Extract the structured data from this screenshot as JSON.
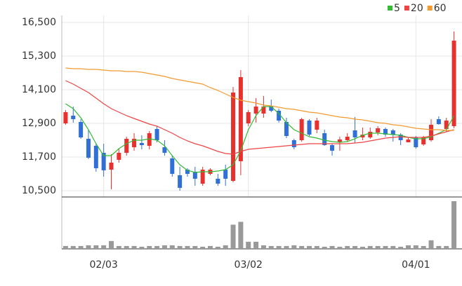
{
  "chart_data": {
    "type": "candlestick",
    "categories": [
      null,
      null,
      null,
      null,
      null,
      "02/03",
      null,
      null,
      null,
      null,
      null,
      null,
      null,
      null,
      null,
      null,
      null,
      null,
      null,
      null,
      null,
      null,
      null,
      null,
      "03/02",
      null,
      null,
      null,
      null,
      null,
      null,
      null,
      null,
      null,
      null,
      null,
      null,
      null,
      null,
      null,
      null,
      null,
      null,
      null,
      null,
      null,
      "04/01",
      null,
      null,
      null,
      null,
      null
    ],
    "open": [
      12900,
      13175,
      12950,
      12350,
      12100,
      11850,
      11250,
      11600,
      11850,
      12050,
      12200,
      12100,
      12700,
      12050,
      11650,
      11050,
      11250,
      11175,
      10750,
      11100,
      10925,
      11250,
      10850,
      11550,
      12900,
      13250,
      13250,
      13500,
      13350,
      12950,
      12300,
      12300,
      13000,
      12675,
      12550,
      12125,
      12225,
      12300,
      12650,
      12400,
      12400,
      12575,
      12700,
      12650,
      12500,
      12225,
      12400,
      12150,
      12300,
      13050,
      12700,
      12800
    ],
    "high": [
      13375,
      13500,
      13050,
      12675,
      12175,
      12175,
      11800,
      12000,
      12425,
      12550,
      12475,
      12625,
      12800,
      12300,
      11750,
      11350,
      11300,
      11350,
      11350,
      11300,
      11100,
      11425,
      14200,
      14800,
      13375,
      13800,
      13875,
      13750,
      13425,
      13100,
      12350,
      13100,
      13050,
      13100,
      12675,
      12175,
      12425,
      12550,
      13125,
      12750,
      12750,
      12800,
      12750,
      12700,
      12550,
      12400,
      12450,
      12450,
      13050,
      13150,
      13100,
      16175
    ],
    "low": [
      12850,
      12925,
      12350,
      11625,
      11175,
      11000,
      10550,
      11500,
      11750,
      11925,
      11975,
      11975,
      12225,
      11750,
      11000,
      10500,
      11000,
      10675,
      10675,
      11050,
      10675,
      10675,
      10800,
      11050,
      12800,
      12925,
      13100,
      13300,
      12925,
      12375,
      11975,
      12250,
      12450,
      12550,
      12100,
      11750,
      11925,
      12250,
      12200,
      12300,
      12350,
      12475,
      12425,
      12250,
      12125,
      12225,
      12000,
      12100,
      12250,
      12850,
      12600,
      12725
    ],
    "close": [
      13300,
      13050,
      12400,
      11675,
      11300,
      11225,
      11500,
      11850,
      12350,
      12350,
      12125,
      12550,
      12300,
      11850,
      11100,
      10600,
      11100,
      10925,
      11250,
      11250,
      10750,
      10925,
      14000,
      14550,
      13300,
      13500,
      13500,
      13350,
      13000,
      12450,
      12050,
      13050,
      12500,
      13000,
      12125,
      11925,
      12325,
      12425,
      12400,
      12500,
      12600,
      12725,
      12500,
      12500,
      12300,
      12325,
      12050,
      12400,
      12850,
      12875,
      13000,
      15850
    ],
    "up_color": "#e8302f",
    "down_color": "#2f6fd6",
    "series": [
      {
        "name": "5",
        "color": "#33bb33",
        "values": [
          13600,
          13425,
          13100,
          12675,
          12175,
          11750,
          11750,
          12000,
          12175,
          12300,
          12300,
          12350,
          12300,
          12100,
          11750,
          11425,
          11225,
          11150,
          11175,
          11175,
          11200,
          11250,
          11425,
          11925,
          12675,
          13175,
          13500,
          13500,
          13250,
          12925,
          12675,
          12550,
          12425,
          12375,
          12300,
          12250,
          12225,
          12250,
          12350,
          12475,
          12550,
          12550,
          12525,
          12500,
          12475,
          12400,
          12350,
          12350,
          12425,
          12550,
          12675,
          13175
        ]
      },
      {
        "name": "20",
        "color": "#ee4444",
        "values": [
          14425,
          14300,
          14150,
          14000,
          13800,
          13600,
          13425,
          13300,
          13175,
          13075,
          12975,
          12875,
          12800,
          12675,
          12550,
          12400,
          12275,
          12175,
          12100,
          12000,
          11900,
          11825,
          11800,
          11900,
          11975,
          12000,
          12025,
          12050,
          12075,
          12100,
          12125,
          12150,
          12175,
          12175,
          12175,
          12175,
          12175,
          12175,
          12200,
          12225,
          12275,
          12325,
          12375,
          12400,
          12425,
          12400,
          12400,
          12400,
          12450,
          12525,
          12600,
          12675
        ]
      },
      {
        "name": "60",
        "color": "#f39a30",
        "values": [
          14875,
          14850,
          14850,
          14825,
          14825,
          14800,
          14775,
          14775,
          14750,
          14750,
          14725,
          14675,
          14625,
          14575,
          14500,
          14450,
          14400,
          14350,
          14300,
          14175,
          14075,
          13950,
          13825,
          13725,
          13675,
          13625,
          13550,
          13525,
          13475,
          13425,
          13400,
          13350,
          13300,
          13275,
          13225,
          13175,
          13125,
          13100,
          13050,
          13025,
          12975,
          12925,
          12900,
          12850,
          12825,
          12775,
          12725,
          12700,
          12675,
          12675,
          12650,
          12650
        ]
      }
    ],
    "ylim": [
      10275,
      16750
    ],
    "yticks": [
      {
        "value": 10500,
        "label": "10,500"
      },
      {
        "value": 11700,
        "label": "11,700"
      },
      {
        "value": 12900,
        "label": "12,900"
      },
      {
        "value": 14100,
        "label": "14,100"
      },
      {
        "value": 15300,
        "label": "15,300"
      },
      {
        "value": 16500,
        "label": "16,500"
      }
    ],
    "volume": [
      4,
      4,
      4,
      5,
      5,
      5,
      11,
      4,
      4,
      4,
      3,
      4,
      4,
      5,
      5,
      4,
      4,
      4,
      3,
      4,
      3,
      5,
      34,
      38,
      10,
      10,
      5,
      4,
      4,
      4,
      5,
      4,
      4,
      4,
      3,
      4,
      3,
      4,
      4,
      3,
      4,
      4,
      4,
      4,
      3,
      5,
      5,
      4,
      12,
      4,
      4,
      67
    ],
    "volume_color": "#999999",
    "volume_ylim": [
      0,
      68
    ],
    "grid": true,
    "legend": "top-right"
  }
}
